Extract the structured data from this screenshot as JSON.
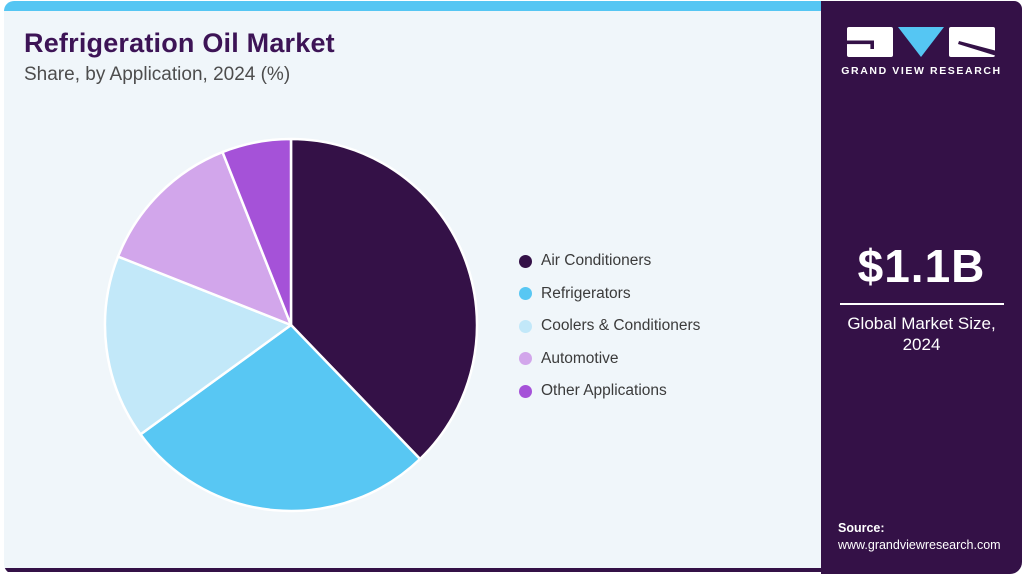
{
  "header": {
    "title": "Refrigeration Oil Market",
    "subtitle": "Share, by Application, 2024 (%)"
  },
  "chart_data": {
    "type": "pie",
    "title": "Refrigeration Oil Market Share, by Application, 2024 (%)",
    "categories": [
      "Air Conditioners",
      "Refrigerators",
      "Coolers & Conditioners",
      "Automotive",
      "Other Applications"
    ],
    "values": [
      37.8,
      27.2,
      16.0,
      13.0,
      6.0
    ],
    "colors": [
      "#341147",
      "#58c7f3",
      "#c2e8f9",
      "#d2a6eb",
      "#a552d8"
    ],
    "start_angle_deg": 0,
    "direction": "clockwise",
    "legend_position": "right",
    "data_labels": false
  },
  "sidebar": {
    "brand": "GRAND VIEW RESEARCH",
    "market_size_value": "$1.1B",
    "market_size_label": "Global Market Size, 2024",
    "source_label": "Source:",
    "source_url": "www.grandviewresearch.com"
  },
  "colors": {
    "topbar_accent": "#55c6f3",
    "sidebar_bg": "#341147",
    "main_bg": "#f0f6fa",
    "title_text": "#3d1456",
    "logo_triangle": "#55c6f3"
  }
}
